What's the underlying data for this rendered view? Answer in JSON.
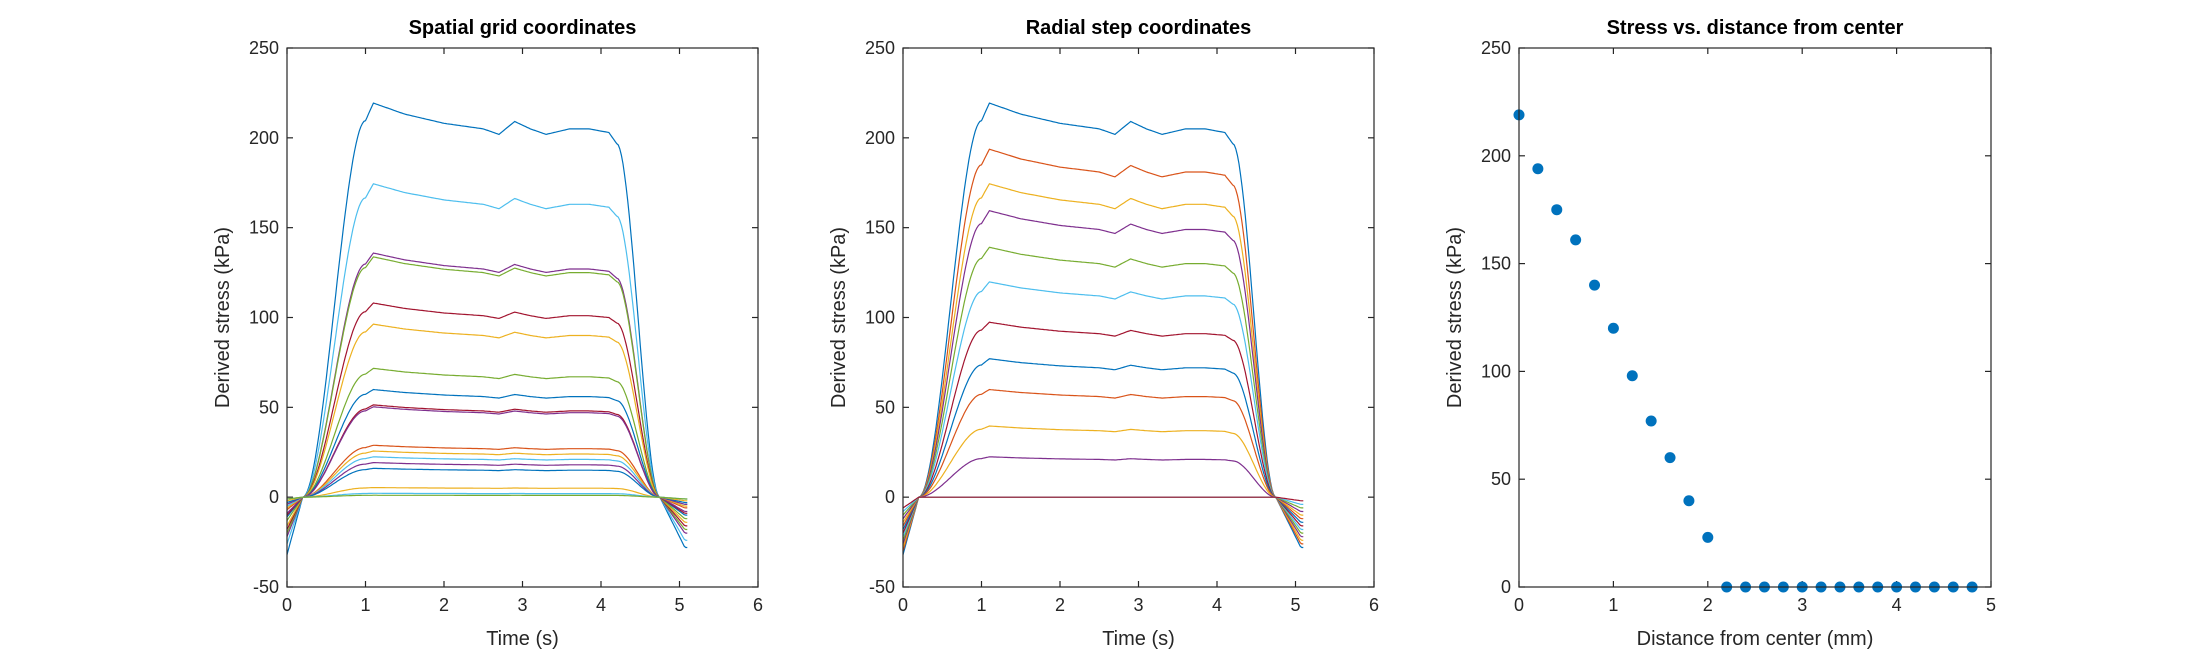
{
  "chart_data": [
    {
      "type": "line",
      "title": "Spatial grid coordinates",
      "xlabel": "Time (s)",
      "ylabel": "Derived stress (kPa)",
      "xlim": [
        0,
        6
      ],
      "ylim": [
        -50,
        250
      ],
      "xticks": [
        0,
        1,
        2,
        3,
        4,
        5,
        6
      ],
      "yticks": [
        -50,
        0,
        50,
        100,
        150,
        200,
        250
      ],
      "colors": [
        "#0072BD",
        "#4DBEEE",
        "#7E2F8E",
        "#77AC30",
        "#A2142F",
        "#EDB120",
        "#77AC30",
        "#0072BD",
        "#A2142F",
        "#7E2F8E",
        "#D95319",
        "#EDB120",
        "#4DBEEE",
        "#7E2F8E",
        "#0072BD",
        "#EDB120",
        "#4DBEEE",
        "#77AC30"
      ],
      "plateaus": [
        205,
        163,
        127,
        125,
        101,
        90,
        67,
        56,
        48,
        47,
        27,
        24,
        21,
        18,
        15,
        5,
        2,
        1
      ],
      "start_values": [
        -32,
        -26,
        -22,
        -20,
        -18,
        -16,
        -13,
        -11,
        -10,
        -9,
        -7,
        -6,
        -5,
        -4,
        -3,
        -2,
        -1,
        -1
      ],
      "end_values": [
        -28,
        -24,
        -20,
        -18,
        -16,
        -14,
        -12,
        -10,
        -9,
        -8,
        -6,
        -5,
        -4,
        -4,
        -3,
        -2,
        -1,
        -1
      ],
      "legend": "none",
      "grid": false
    },
    {
      "type": "line",
      "title": "Radial step coordinates",
      "xlabel": "Time (s)",
      "ylabel": "Derived stress (kPa)",
      "xlim": [
        0,
        6
      ],
      "ylim": [
        -50,
        250
      ],
      "xticks": [
        0,
        1,
        2,
        3,
        4,
        5,
        6
      ],
      "yticks": [
        -50,
        0,
        50,
        100,
        150,
        200,
        250
      ],
      "colors": [
        "#0072BD",
        "#D95319",
        "#EDB120",
        "#7E2F8E",
        "#77AC30",
        "#4DBEEE",
        "#A2142F",
        "#0072BD",
        "#D95319",
        "#EDB120",
        "#7E2F8E",
        "#77AC30",
        "#4DBEEE",
        "#A2142F"
      ],
      "plateaus": [
        205,
        181,
        163,
        149,
        130,
        112,
        91,
        72,
        56,
        37,
        21,
        0,
        0,
        0
      ],
      "start_values": [
        -32,
        -30,
        -28,
        -26,
        -24,
        -22,
        -20,
        -18,
        -16,
        -14,
        -12,
        -10,
        -8,
        -6
      ],
      "end_values": [
        -28,
        -26,
        -24,
        -22,
        -20,
        -18,
        -16,
        -14,
        -12,
        -10,
        -8,
        -6,
        -4,
        -2
      ],
      "legend": "none",
      "grid": false
    },
    {
      "type": "scatter",
      "title": "Stress vs. distance from center",
      "xlabel": "Distance from center (mm)",
      "ylabel": "Derived stress (kPa)",
      "xlim": [
        0,
        5
      ],
      "ylim": [
        0,
        250
      ],
      "xticks": [
        0,
        1,
        2,
        3,
        4,
        5
      ],
      "yticks": [
        0,
        50,
        100,
        150,
        200,
        250
      ],
      "color": "#0072BD",
      "x": [
        0,
        0.2,
        0.4,
        0.6,
        0.8,
        1.0,
        1.2,
        1.4,
        1.6,
        1.8,
        2.0,
        2.2,
        2.4,
        2.6,
        2.8,
        3.0,
        3.2,
        3.4,
        3.6,
        3.8,
        4.0,
        4.2,
        4.4,
        4.6,
        4.8
      ],
      "y": [
        219,
        194,
        175,
        161,
        140,
        120,
        98,
        77,
        60,
        40,
        23,
        0,
        0,
        0,
        0,
        0,
        0,
        0,
        0,
        0,
        0,
        0,
        0,
        0,
        0
      ],
      "legend": "none",
      "grid": false
    }
  ]
}
